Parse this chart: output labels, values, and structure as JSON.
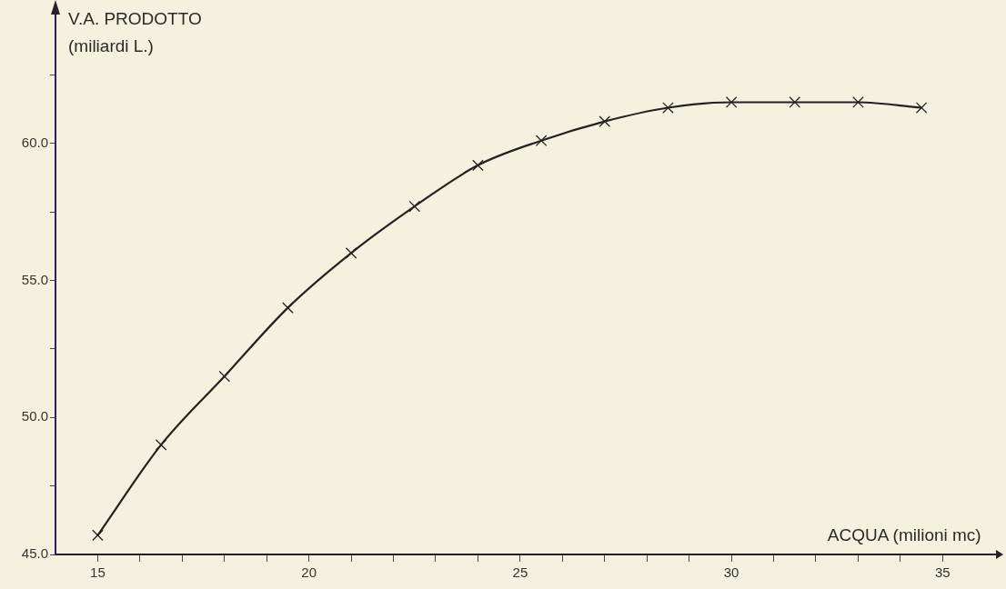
{
  "chart_data": {
    "type": "line",
    "xlabel": "ACQUA (milioni mc)",
    "ylabel": "V.A. PRODOTTO (miliardi L.)",
    "x": [
      15,
      16.5,
      18,
      19.5,
      21,
      22.5,
      24,
      25.5,
      27,
      28.5,
      30,
      31.5,
      33,
      34.5
    ],
    "series": [
      {
        "color": "#222222",
        "values": [
          45.7,
          49.0,
          51.5,
          54.0,
          56.0,
          57.7,
          59.2,
          60.1,
          60.8,
          61.3,
          61.5,
          61.5,
          61.5,
          61.3
        ]
      }
    ],
    "xlim": [
      14,
      36.3
    ],
    "ylim": [
      45,
      64.7
    ],
    "xticks": [
      15,
      {
        "value": 16,
        "label": null
      },
      {
        "value": 17,
        "label": null
      },
      {
        "value": 18,
        "label": null
      },
      {
        "value": 19,
        "label": null
      },
      20,
      {
        "value": 21,
        "label": null
      },
      {
        "value": 22,
        "label": null
      },
      {
        "value": 23,
        "label": null
      },
      {
        "value": 24,
        "label": null
      },
      25,
      {
        "value": 26,
        "label": null
      },
      {
        "value": 27,
        "label": null
      },
      {
        "value": 28,
        "label": null
      },
      {
        "value": 29,
        "label": null
      },
      30,
      {
        "value": 31,
        "label": null
      },
      {
        "value": 32,
        "label": null
      },
      {
        "value": 33,
        "label": null
      },
      {
        "value": 34,
        "label": null
      },
      35
    ],
    "yticks": [
      {
        "value": 45,
        "label": "45.0"
      },
      {
        "value": 47.5,
        "label": null
      },
      {
        "value": 50,
        "label": "50.0"
      },
      {
        "value": 52.5,
        "label": null
      },
      {
        "value": 55,
        "label": "55.0"
      },
      {
        "value": 57.5,
        "label": null
      },
      {
        "value": 60,
        "label": "60.0"
      },
      {
        "value": 62.5,
        "label": null
      }
    ],
    "grid": false,
    "legend": false,
    "marker": "cross",
    "line_style": "solid"
  }
}
